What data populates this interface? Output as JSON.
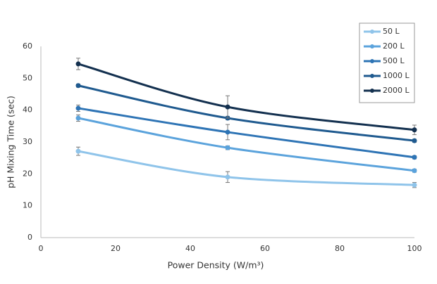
{
  "chart_data": {
    "type": "line",
    "xlabel": "Power Density (W/m³)",
    "ylabel": "pH Mixing Time (sec)",
    "x": [
      10,
      50,
      100
    ],
    "series": [
      {
        "name": "50 L",
        "color": "#8fc4ea",
        "values": [
          27.1,
          19.0,
          16.5
        ],
        "errors": [
          1.3,
          1.7,
          0.8
        ]
      },
      {
        "name": "200 L",
        "color": "#5ba3dc",
        "values": [
          37.5,
          28.2,
          21.0
        ],
        "errors": [
          1.0,
          0.6,
          0.5
        ]
      },
      {
        "name": "500 L",
        "color": "#2e74b5",
        "values": [
          40.6,
          33.1,
          25.2
        ],
        "errors": [
          1.0,
          2.4,
          0.5
        ]
      },
      {
        "name": "1000 L",
        "color": "#1f5a8f",
        "values": [
          47.7,
          37.5,
          30.4
        ],
        "errors": [
          0.5,
          0.5,
          0.5
        ]
      },
      {
        "name": "2000 L",
        "color": "#13304f",
        "values": [
          54.5,
          41.0,
          33.8
        ],
        "errors": [
          1.8,
          3.5,
          1.5
        ]
      }
    ],
    "xlim": [
      0,
      100
    ],
    "xticks": [
      0,
      20,
      40,
      60,
      80,
      100
    ],
    "ylim": [
      0,
      60
    ],
    "yticks": [
      0,
      10,
      20,
      30,
      40,
      50,
      60
    ],
    "grid": false,
    "legend": "top-right"
  }
}
